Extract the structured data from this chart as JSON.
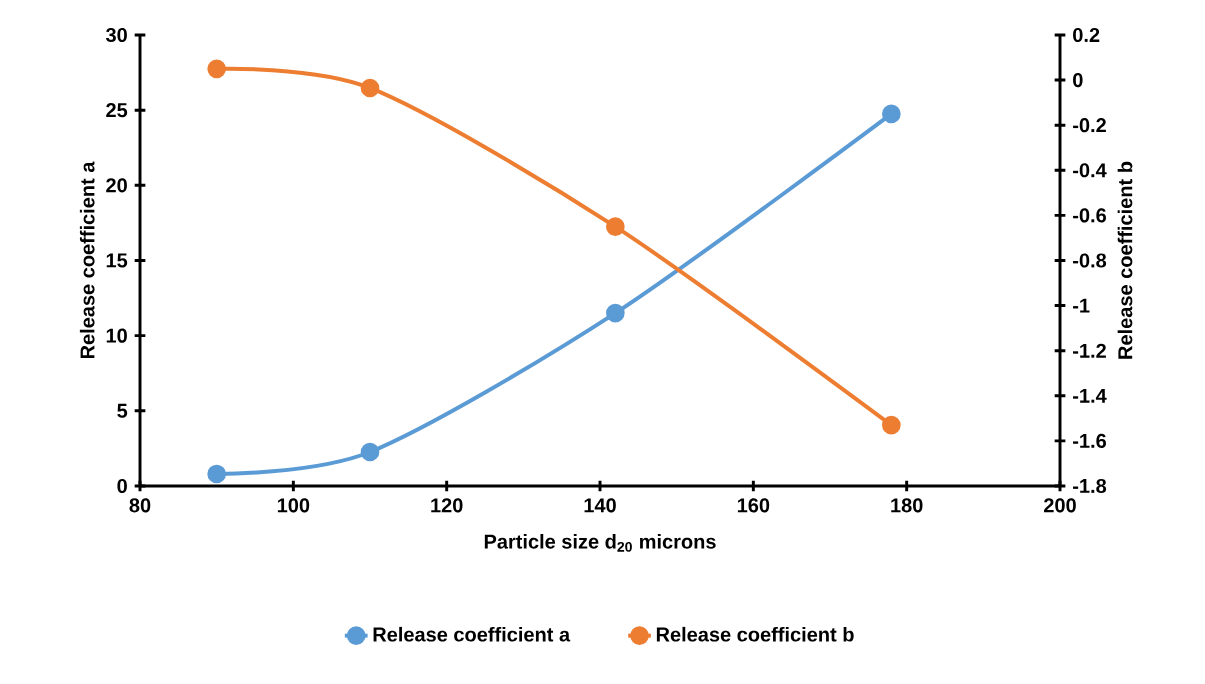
{
  "chart_data": {
    "type": "line",
    "xlabel": "Particle size d$_{20}$ microns",
    "ylabel": "Release coefficient a",
    "y2label": "Release coefficient b",
    "x": [
      90,
      110,
      142,
      178
    ],
    "series": [
      {
        "name": "Release coefficient a",
        "color": "#5b9bd5",
        "values": [
          0.8,
          2.26,
          11.5,
          24.75
        ]
      },
      {
        "name": "Release coefficient b",
        "color": "#ed7d31",
        "axis": "y2",
        "values": [
          0.05,
          -0.035,
          -0.65,
          -1.53
        ]
      }
    ],
    "xlim": [
      80,
      200
    ],
    "xticks": [
      80,
      100,
      120,
      140,
      160,
      180,
      200
    ],
    "ylim": [
      0,
      30
    ],
    "yticks": [
      0,
      5,
      10,
      15,
      20,
      25,
      30
    ],
    "y2lim": [
      -1.8,
      0.2
    ],
    "y2ticks": [
      -1.8,
      -1.6,
      -1.4,
      -1.2,
      -1,
      -0.8,
      -0.6,
      -0.4,
      -0.2,
      0,
      0.2
    ],
    "legend": "bottom",
    "marker": "circle",
    "line_style": "solid",
    "grid": false
  }
}
